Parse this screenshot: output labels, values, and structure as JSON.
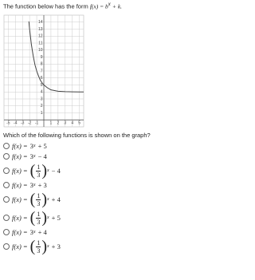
{
  "intro": {
    "text": "The function below has the form",
    "formula": "f(x) = b",
    "exp": "x",
    "tail": "+ k."
  },
  "graph": {
    "xlim": [
      -5.6,
      5.6
    ],
    "ylim": [
      -1,
      15
    ],
    "xticks": [
      -5,
      -4,
      -3,
      -2,
      -1,
      1,
      2,
      3,
      4,
      5
    ],
    "yticks": [
      1,
      2,
      3,
      4,
      5,
      6,
      7,
      8,
      9,
      10,
      11,
      12,
      13,
      14
    ],
    "curve": {
      "x": [
        -2.1,
        -2,
        -1.75,
        -1.5,
        -1.25,
        -1,
        -0.75,
        -0.5,
        -0.25,
        0,
        0.5,
        1,
        1.5,
        2,
        3,
        4,
        5,
        5.6
      ],
      "y": [
        14.1,
        13,
        10.8,
        9.2,
        7.9,
        7,
        6.3,
        5.7,
        5.3,
        5,
        4.6,
        4.3,
        4.2,
        4.1,
        4.04,
        4.01,
        4.0,
        4.0
      ]
    }
  },
  "question": "Which of the following functions is shown on the graph?",
  "options": [
    {
      "lhs": "f(x) =",
      "base": "3",
      "exp": "x",
      "rest": "+ 5"
    },
    {
      "lhs": "f(x) =",
      "base": "3",
      "exp": "x",
      "rest": "− 4"
    },
    {
      "lhs": "f(x) =",
      "base": {
        "open": "(",
        "num": "1",
        "den": "3",
        "close": ")"
      },
      "exp": "x",
      "rest": "− 4"
    },
    {
      "lhs": "f(x) =",
      "base": "3",
      "exp": "x",
      "rest": "+ 3"
    },
    {
      "lhs": "f(x) =",
      "base": {
        "open": "(",
        "num": "1",
        "den": "3",
        "close": ")"
      },
      "exp": "x",
      "rest": "+ 4"
    },
    {
      "lhs": "f(x) =",
      "base": {
        "open": "(",
        "num": "1",
        "den": "3",
        "close": ")"
      },
      "exp": "x",
      "rest": "+ 5"
    },
    {
      "lhs": "f(x) =",
      "base": "3",
      "exp": "x",
      "rest": "+ 4"
    },
    {
      "lhs": "f(x) =",
      "base": {
        "open": "(",
        "num": "1",
        "den": "3",
        "close": ")"
      },
      "exp": "x",
      "rest": "+ 3"
    }
  ]
}
